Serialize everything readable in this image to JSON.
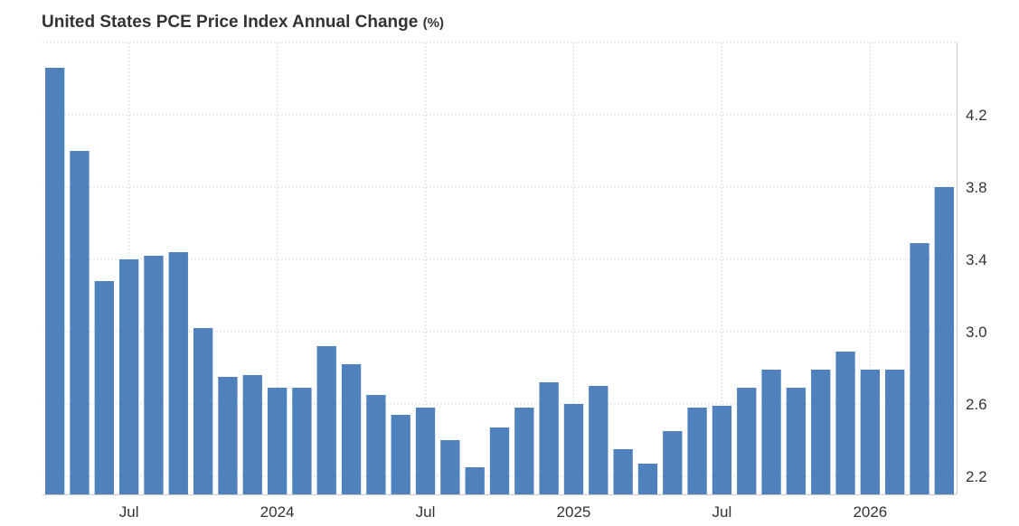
{
  "chart_data": {
    "type": "bar",
    "title": "United States PCE Price Index Annual Change",
    "title_unit": "(%)",
    "xlabel": "",
    "ylabel": "",
    "series": [
      {
        "color": "#4f81bd",
        "values": [
          4.46,
          4.0,
          3.28,
          3.4,
          3.42,
          3.44,
          3.02,
          2.75,
          2.76,
          2.69,
          2.69,
          2.92,
          2.82,
          2.65,
          2.54,
          2.58,
          2.4,
          2.25,
          2.47,
          2.58,
          2.72,
          2.6,
          2.7,
          2.35,
          2.27,
          2.45,
          2.58,
          2.59,
          2.69,
          2.79,
          2.69,
          2.79,
          2.89,
          2.79,
          2.79,
          3.49,
          3.8
        ]
      }
    ],
    "x_tick_labels": [
      {
        "label": "Jul",
        "index": 3
      },
      {
        "label": "2024",
        "index": 9
      },
      {
        "label": "Jul",
        "index": 15
      },
      {
        "label": "2025",
        "index": 21
      },
      {
        "label": "Jul",
        "index": 27
      },
      {
        "label": "2026",
        "index": 33
      }
    ],
    "y_ticks": [
      "2.2",
      "2.6",
      "3.0",
      "3.4",
      "3.8",
      "4.2"
    ],
    "ylim": [
      2.1,
      4.6
    ],
    "y_axis_position": "right",
    "grid": true
  }
}
